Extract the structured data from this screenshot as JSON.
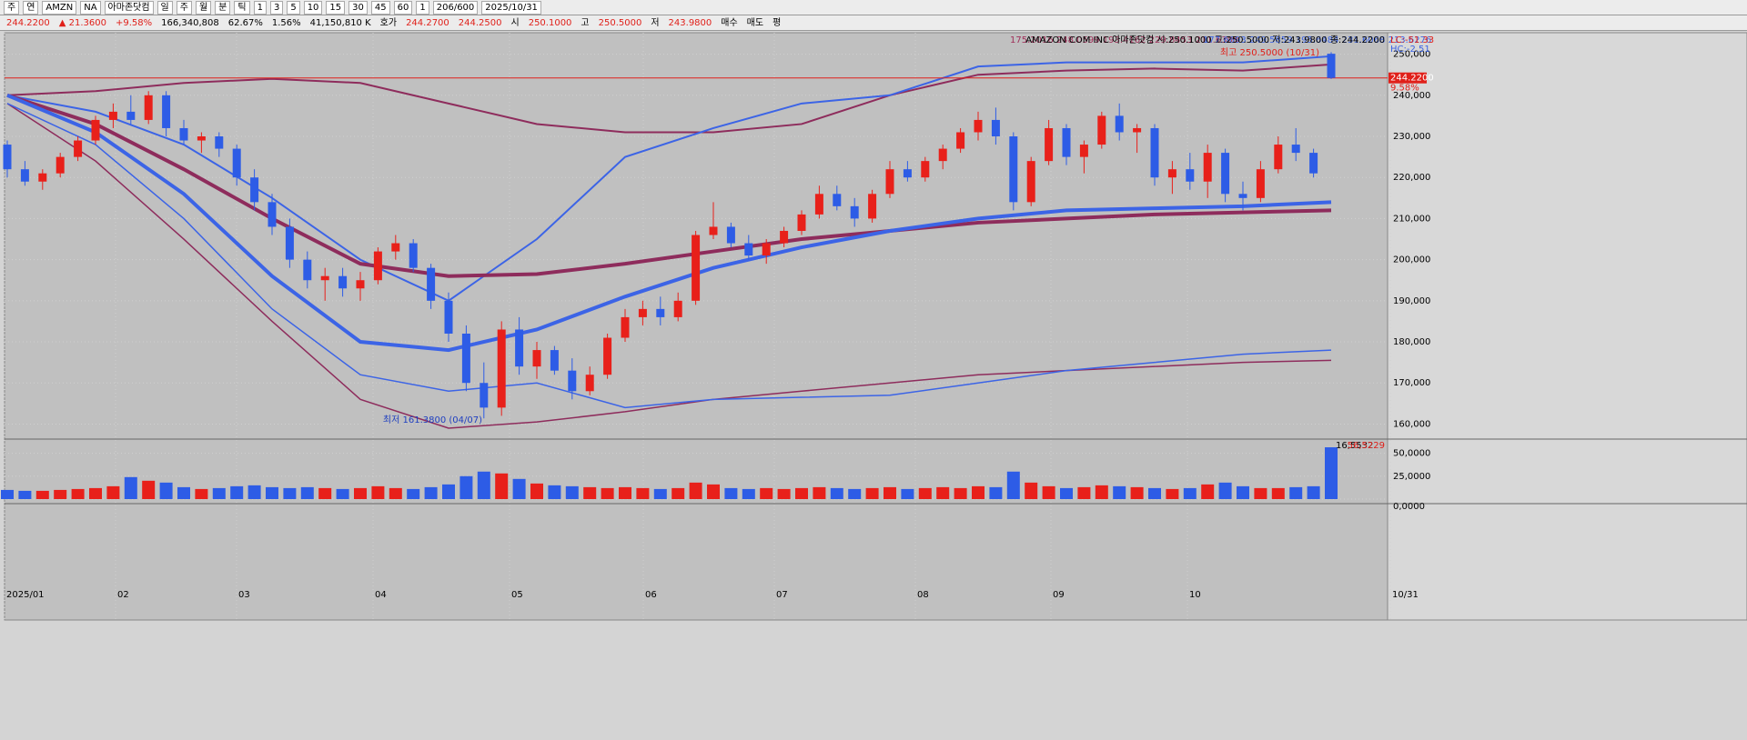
{
  "toolbar": {
    "items": [
      "주",
      "연",
      "AMZN",
      "NA",
      "아마존닷컴",
      "일",
      "주",
      "월",
      "분",
      "틱",
      "1",
      "3",
      "5",
      "10",
      "15",
      "30",
      "45",
      "60",
      "1",
      "206/600",
      "2025/10/31"
    ]
  },
  "quote_bar": {
    "items": [
      {
        "text": "244.2200",
        "color": "#e0201a"
      },
      {
        "text": "▲ 21.3600",
        "color": "#e0201a"
      },
      {
        "text": "+9.58%",
        "color": "#e0201a"
      },
      {
        "text": "166,340,808",
        "color": "#000000"
      },
      {
        "text": "62.67%",
        "color": "#000000"
      },
      {
        "text": "1.56%",
        "color": "#000000"
      },
      {
        "text": "41,150,810 K",
        "color": "#000000"
      },
      {
        "text": "호가",
        "color": "#000000"
      },
      {
        "text": "244.2700",
        "color": "#e0201a"
      },
      {
        "text": "244.2500",
        "color": "#e0201a"
      },
      {
        "text": "시",
        "color": "#000000"
      },
      {
        "text": "250.1000",
        "color": "#e0201a"
      },
      {
        "text": "고",
        "color": "#000000"
      },
      {
        "text": "250.5000",
        "color": "#e0201a"
      },
      {
        "text": "저",
        "color": "#000000"
      },
      {
        "text": "243.9800",
        "color": "#e0201a"
      },
      {
        "text": "매수",
        "color": "#000000"
      },
      {
        "text": "매도",
        "color": "#000000"
      },
      {
        "text": "평",
        "color": "#000000"
      }
    ]
  },
  "chart_data": {
    "type": "candlestick",
    "legend_red": "175.2016 248.0599 193.4162 229.8453 211.6308",
    "legend_blue": "177.6693 249.5859 195.6484 231.6068 213.6276",
    "legend_info": "AMAZON COM INC 아마존닷컴 시:250.1000 고:250.5000 저:243.9800 종:244.2200",
    "lc": "LC:-51.33",
    "hc": "HC:-2.51",
    "high_note": "최고 250.5000 (10/31)",
    "low_note": "최저 161.3800 (04/07)",
    "last_price": 244220,
    "last_price_label": "244.2200",
    "change_label": "9.58%",
    "up_color": "#e8201a",
    "down_color": "#2d5ce6",
    "ylim": [
      157000,
      255000
    ],
    "yticks": [
      {
        "value": 160000,
        "label": "160,000"
      },
      {
        "value": 170000,
        "label": "170,000"
      },
      {
        "value": 180000,
        "label": "180,000"
      },
      {
        "value": 190000,
        "label": "190,000"
      },
      {
        "value": 200000,
        "label": "200,000"
      },
      {
        "value": 210000,
        "label": "210,000"
      },
      {
        "value": 220000,
        "label": "220,000"
      },
      {
        "value": 230000,
        "label": "230,000"
      },
      {
        "value": 240000,
        "label": "240,000"
      },
      {
        "value": 250000,
        "label": "250,000"
      }
    ],
    "x_labels": [
      "2025/01",
      "02",
      "03",
      "04",
      "05",
      "06",
      "07",
      "08",
      "09",
      "10",
      "10/31"
    ],
    "open": [
      228000,
      222000,
      219000,
      221000,
      225000,
      229000,
      234000,
      236000,
      234000,
      240000,
      232000,
      229000,
      230000,
      227000,
      220000,
      214000,
      208000,
      200000,
      195000,
      196000,
      193000,
      195000,
      202000,
      204000,
      198000,
      190000,
      182000,
      170000,
      164000,
      183000,
      174000,
      178000,
      173000,
      168000,
      172000,
      181000,
      186000,
      188000,
      186000,
      190000,
      206000,
      208000,
      204000,
      201000,
      204000,
      207000,
      211000,
      216000,
      213000,
      210000,
      216000,
      222000,
      220000,
      224000,
      227000,
      231000,
      234000,
      230000,
      214000,
      224000,
      232000,
      225000,
      228000,
      235000,
      231000,
      232000,
      220000,
      222000,
      219000,
      226000,
      216000,
      215000,
      222000,
      228000,
      226000,
      250100
    ],
    "high": [
      229000,
      224000,
      222000,
      226000,
      230000,
      235000,
      238000,
      240000,
      241000,
      241000,
      234000,
      231000,
      231000,
      228000,
      222000,
      216000,
      210000,
      202000,
      198000,
      198000,
      197000,
      203000,
      206000,
      205000,
      199000,
      192000,
      184000,
      175000,
      185000,
      186000,
      180000,
      179000,
      176000,
      174000,
      182000,
      188000,
      190000,
      191000,
      192000,
      207000,
      214000,
      209000,
      206000,
      205000,
      208000,
      212000,
      218000,
      218000,
      215000,
      217000,
      224000,
      224000,
      225000,
      228000,
      232000,
      236000,
      237000,
      231000,
      225000,
      234000,
      233000,
      229000,
      236000,
      238000,
      233000,
      233000,
      224000,
      226000,
      228000,
      227000,
      219000,
      224000,
      230000,
      232000,
      227000,
      250500
    ],
    "low": [
      220000,
      218000,
      217000,
      220000,
      224000,
      228000,
      232000,
      233000,
      233000,
      230000,
      228000,
      226000,
      225000,
      218000,
      212000,
      206000,
      198000,
      193000,
      190000,
      191000,
      190000,
      194000,
      200000,
      197000,
      188000,
      180000,
      168000,
      161380,
      162000,
      172000,
      171000,
      172000,
      166000,
      167000,
      171000,
      180000,
      184000,
      184000,
      185000,
      189000,
      205000,
      203000,
      200000,
      199000,
      203000,
      206000,
      210000,
      212000,
      208000,
      209000,
      215000,
      219000,
      219000,
      222000,
      226000,
      229000,
      228000,
      212000,
      213000,
      223000,
      223000,
      221000,
      227000,
      229000,
      226000,
      218000,
      216000,
      217000,
      215000,
      214000,
      212000,
      214000,
      221000,
      224000,
      220000,
      243980
    ],
    "close": [
      222000,
      219000,
      221000,
      225000,
      229000,
      234000,
      236000,
      234000,
      240000,
      232000,
      229000,
      230000,
      227000,
      220000,
      214000,
      208000,
      200000,
      195000,
      196000,
      193000,
      195000,
      202000,
      204000,
      198000,
      190000,
      182000,
      170000,
      164000,
      183000,
      174000,
      178000,
      173000,
      168000,
      172000,
      181000,
      186000,
      188000,
      186000,
      190000,
      206000,
      208000,
      204000,
      201000,
      204000,
      207000,
      211000,
      216000,
      213000,
      210000,
      216000,
      222000,
      220000,
      224000,
      227000,
      231000,
      234000,
      230000,
      214000,
      224000,
      232000,
      225000,
      228000,
      235000,
      231000,
      232000,
      220000,
      222000,
      219000,
      226000,
      216000,
      215000,
      222000,
      228000,
      226000,
      221000,
      244220
    ],
    "lines": [
      {
        "color": "#8e2c5c",
        "width": 2,
        "values": [
          240000,
          241000,
          243000,
          244000,
          243000,
          238000,
          233000,
          231000,
          231000,
          233000,
          240000,
          245000,
          246000,
          246500,
          246000,
          247500
        ]
      },
      {
        "color": "#3c64e6",
        "width": 2,
        "values": [
          240000,
          236000,
          228000,
          215000,
          200000,
          190000,
          205000,
          225000,
          232000,
          238000,
          240000,
          247000,
          248000,
          248000,
          248000,
          249500
        ]
      },
      {
        "color": "#8e2c5c",
        "width": 4,
        "values": [
          240000,
          233000,
          222000,
          210000,
          199000,
          196000,
          196500,
          199000,
          202000,
          205000,
          207000,
          209000,
          210000,
          211000,
          211500,
          212000
        ]
      },
      {
        "color": "#3c64e6",
        "width": 4,
        "values": [
          240000,
          231000,
          216000,
          196000,
          180000,
          178000,
          183000,
          191000,
          198000,
          203000,
          207000,
          210000,
          212000,
          212500,
          213000,
          214000
        ]
      },
      {
        "color": "#8e2c5c",
        "width": 1.5,
        "values": [
          238000,
          224000,
          205000,
          185000,
          166000,
          159000,
          160500,
          163000,
          166000,
          168000,
          170000,
          172000,
          173000,
          174000,
          175000,
          175500
        ]
      },
      {
        "color": "#3c64e6",
        "width": 1.5,
        "values": [
          238000,
          228000,
          210000,
          188000,
          172000,
          168000,
          170000,
          164000,
          166000,
          166500,
          167000,
          170000,
          173000,
          175000,
          177000,
          178000
        ]
      }
    ],
    "volume": {
      "values": [
        10,
        9,
        9,
        10,
        11,
        12,
        14,
        24,
        20,
        18,
        13,
        11,
        12,
        14,
        15,
        13,
        12,
        13,
        12,
        11,
        12,
        14,
        12,
        11,
        13,
        16,
        25,
        30,
        28,
        22,
        17,
        15,
        14,
        13,
        12,
        13,
        12,
        11,
        12,
        18,
        16,
        12,
        11,
        12,
        11,
        12,
        13,
        12,
        11,
        12,
        13,
        11,
        12,
        13,
        12,
        14,
        13,
        30,
        18,
        14,
        12,
        13,
        15,
        14,
        13,
        12,
        11,
        12,
        16,
        18,
        14,
        12,
        12,
        13,
        14,
        56.5229
      ],
      "ylim": [
        0,
        62.5
      ],
      "yticks": [
        {
          "value": 0,
          "label": "0,0000"
        },
        {
          "value": 25,
          "label": "25,0000"
        },
        {
          "value": 50,
          "label": "50,0000"
        }
      ],
      "avg_label": "16,5532",
      "last_label": "56,5229"
    }
  }
}
